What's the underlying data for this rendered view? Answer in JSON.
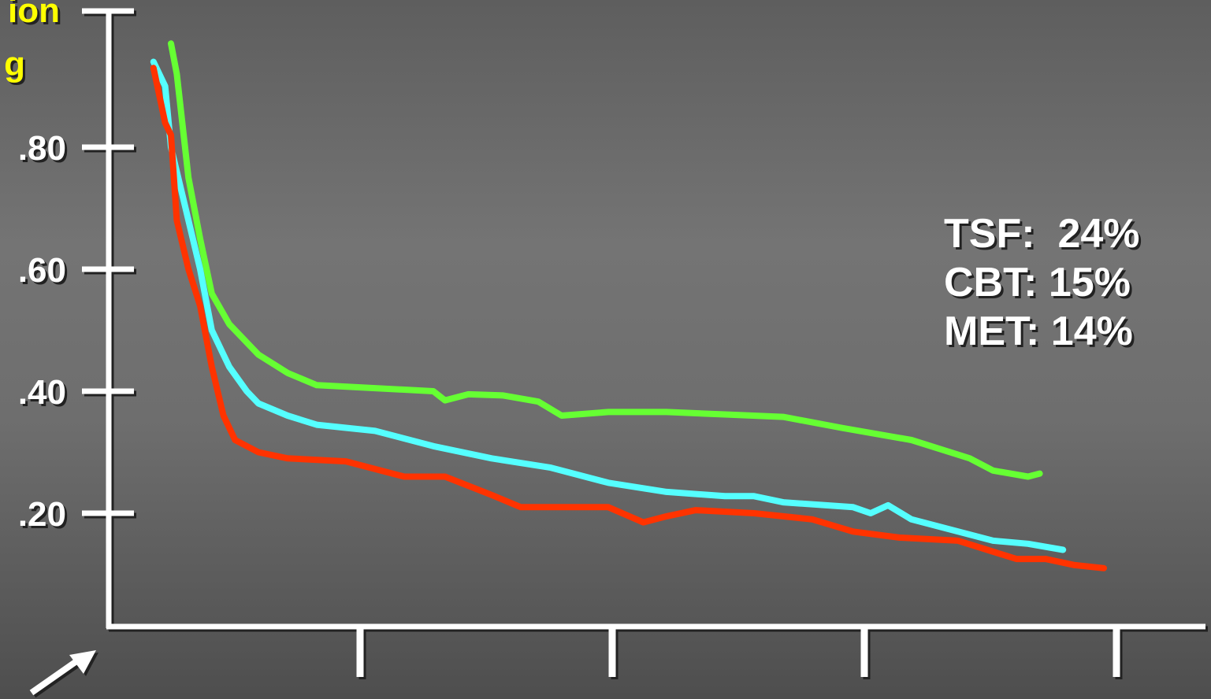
{
  "chart_data": {
    "type": "line",
    "title_fragment": [
      "ion",
      "g"
    ],
    "y_ticks": [
      ".80",
      ".60",
      ".40",
      ".20"
    ],
    "y_tick_values": [
      0.8,
      0.6,
      0.4,
      0.2
    ],
    "ylim": [
      0.02,
      1.0
    ],
    "x_ticks_count": 4,
    "grid": false,
    "series": [
      {
        "name": "TSF",
        "color": "#66ff33",
        "points": [
          [
            0.05,
            0.97
          ],
          [
            0.06,
            0.92
          ],
          [
            0.08,
            0.75
          ],
          [
            0.1,
            0.65
          ],
          [
            0.12,
            0.56
          ],
          [
            0.15,
            0.51
          ],
          [
            0.2,
            0.46
          ],
          [
            0.25,
            0.43
          ],
          [
            0.3,
            0.41
          ],
          [
            0.4,
            0.405
          ],
          [
            0.5,
            0.4
          ],
          [
            0.52,
            0.385
          ],
          [
            0.56,
            0.395
          ],
          [
            0.62,
            0.393
          ],
          [
            0.68,
            0.383
          ],
          [
            0.72,
            0.36
          ],
          [
            0.8,
            0.366
          ],
          [
            0.9,
            0.366
          ],
          [
            1.0,
            0.362
          ],
          [
            1.1,
            0.358
          ],
          [
            1.2,
            0.34
          ],
          [
            1.32,
            0.32
          ],
          [
            1.42,
            0.29
          ],
          [
            1.46,
            0.27
          ],
          [
            1.52,
            0.26
          ],
          [
            1.54,
            0.265
          ]
        ]
      },
      {
        "name": "CBT",
        "color": "#55ffff",
        "points": [
          [
            0.02,
            0.94
          ],
          [
            0.04,
            0.9
          ],
          [
            0.05,
            0.8
          ],
          [
            0.07,
            0.72
          ],
          [
            0.1,
            0.6
          ],
          [
            0.12,
            0.5
          ],
          [
            0.15,
            0.44
          ],
          [
            0.18,
            0.4
          ],
          [
            0.2,
            0.38
          ],
          [
            0.25,
            0.36
          ],
          [
            0.3,
            0.345
          ],
          [
            0.4,
            0.335
          ],
          [
            0.5,
            0.31
          ],
          [
            0.6,
            0.29
          ],
          [
            0.7,
            0.275
          ],
          [
            0.8,
            0.25
          ],
          [
            0.9,
            0.235
          ],
          [
            1.0,
            0.228
          ],
          [
            1.05,
            0.228
          ],
          [
            1.1,
            0.218
          ],
          [
            1.22,
            0.21
          ],
          [
            1.25,
            0.2
          ],
          [
            1.28,
            0.213
          ],
          [
            1.32,
            0.19
          ],
          [
            1.4,
            0.17
          ],
          [
            1.46,
            0.155
          ],
          [
            1.52,
            0.15
          ],
          [
            1.58,
            0.14
          ]
        ]
      },
      {
        "name": "MET",
        "color": "#ff3300",
        "points": [
          [
            0.02,
            0.93
          ],
          [
            0.04,
            0.84
          ],
          [
            0.05,
            0.82
          ],
          [
            0.06,
            0.68
          ],
          [
            0.08,
            0.6
          ],
          [
            0.1,
            0.54
          ],
          [
            0.12,
            0.44
          ],
          [
            0.14,
            0.36
          ],
          [
            0.16,
            0.32
          ],
          [
            0.2,
            0.3
          ],
          [
            0.25,
            0.29
          ],
          [
            0.35,
            0.285
          ],
          [
            0.45,
            0.26
          ],
          [
            0.52,
            0.26
          ],
          [
            0.6,
            0.23
          ],
          [
            0.65,
            0.21
          ],
          [
            0.72,
            0.21
          ],
          [
            0.8,
            0.21
          ],
          [
            0.86,
            0.185
          ],
          [
            0.9,
            0.195
          ],
          [
            0.95,
            0.205
          ],
          [
            1.05,
            0.2
          ],
          [
            1.15,
            0.19
          ],
          [
            1.22,
            0.17
          ],
          [
            1.3,
            0.16
          ],
          [
            1.4,
            0.155
          ],
          [
            1.45,
            0.14
          ],
          [
            1.5,
            0.125
          ],
          [
            1.55,
            0.125
          ],
          [
            1.6,
            0.115
          ],
          [
            1.65,
            0.11
          ]
        ]
      }
    ],
    "annotations": [
      {
        "label": "TSF:",
        "value": "24%"
      },
      {
        "label": "CBT:",
        "value": "15%"
      },
      {
        "label": "MET:",
        "value": "14%"
      }
    ],
    "decorations": {
      "arrow_color": "#ffffff",
      "axis_color": "#ffffff"
    }
  }
}
